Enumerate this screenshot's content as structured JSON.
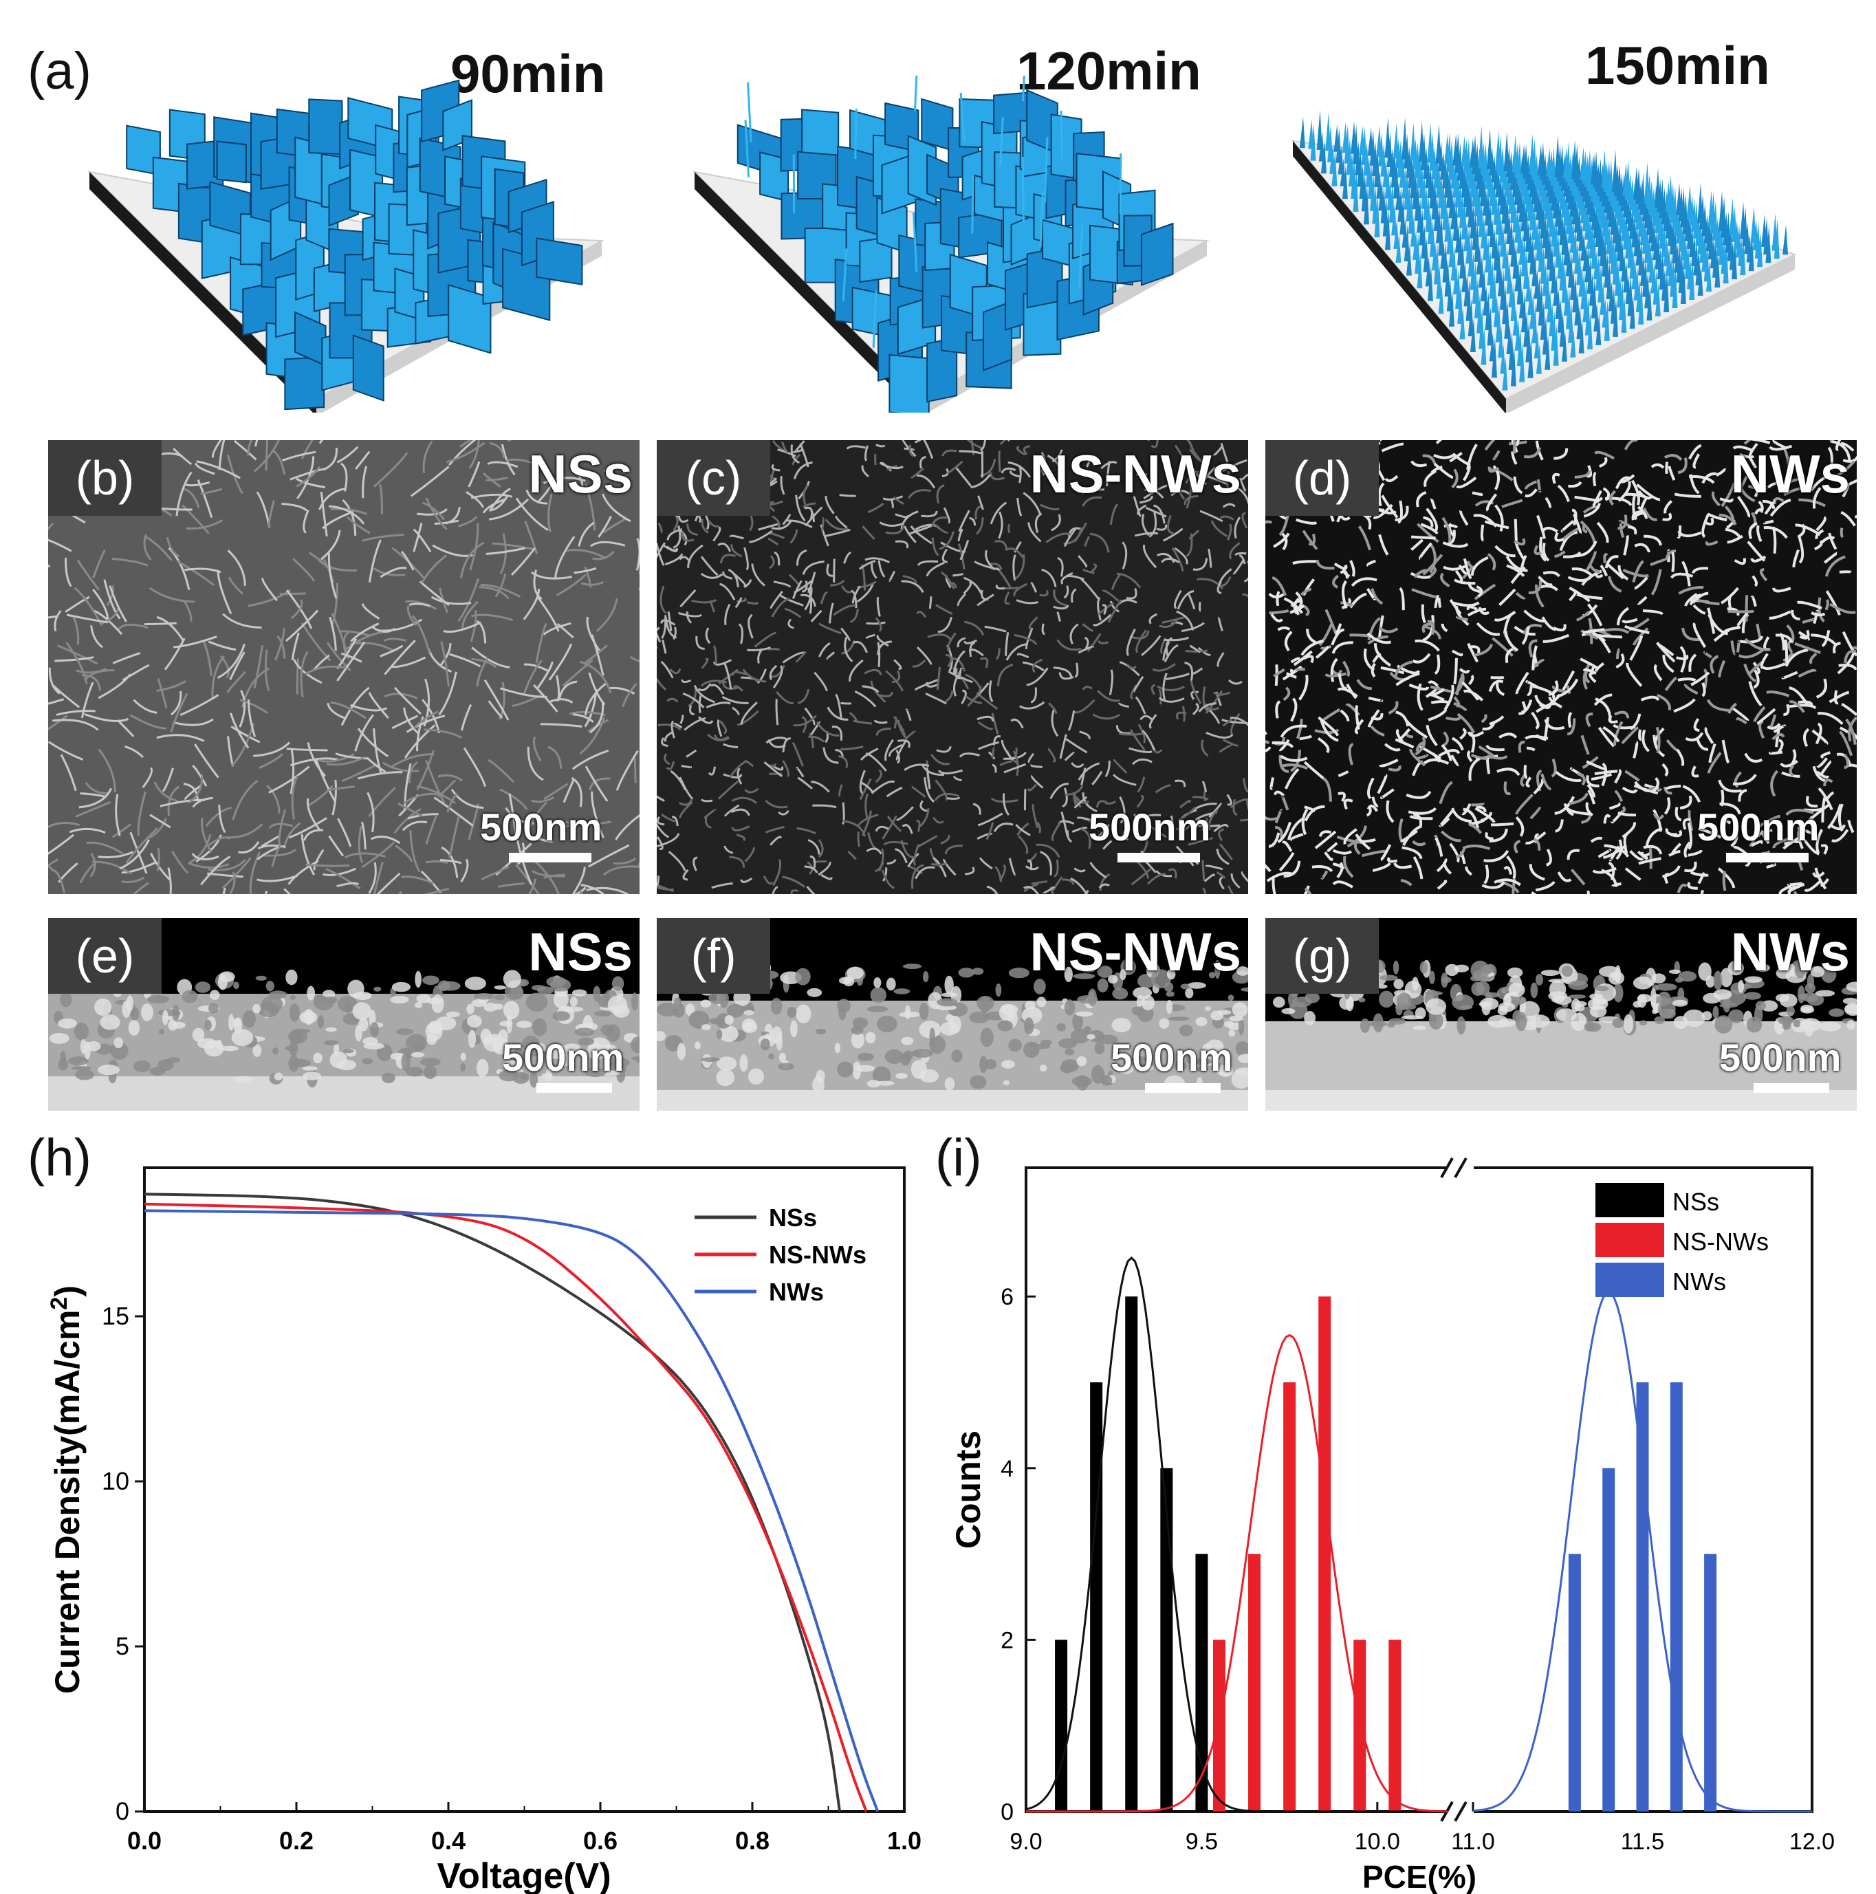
{
  "panel_a": {
    "letter": "(a)",
    "times": [
      "90min",
      "120min",
      "150min"
    ]
  },
  "sem_top": [
    {
      "letter": "(b)",
      "name": "NSs",
      "scale": "500nm"
    },
    {
      "letter": "(c)",
      "name": "NS-NWs",
      "scale": "500nm"
    },
    {
      "letter": "(d)",
      "name": "NWs",
      "scale": "500nm"
    }
  ],
  "sem_cross": [
    {
      "letter": "(e)",
      "name": "NSs",
      "scale": "500nm"
    },
    {
      "letter": "(f)",
      "name": "NS-NWs",
      "scale": "500nm"
    },
    {
      "letter": "(g)",
      "name": "NWs",
      "scale": "500nm"
    }
  ],
  "colors": {
    "NSs": "#3a3a3a",
    "NS-NWs": "#e8202a",
    "NWs": "#3c62c8",
    "blue_ns": "#1fa0e0"
  },
  "chart_data": [
    {
      "letter": "(h)",
      "type": "line",
      "title": "",
      "xlabel": "Voltage(V)",
      "ylabel": "Current Density(mA/cm",
      "ylabel_sup": "2",
      "ylabel_close": ")",
      "xlim": [
        0.0,
        1.0
      ],
      "ylim": [
        0,
        19.5
      ],
      "xticks": [
        "0.0",
        "0.2",
        "0.4",
        "0.6",
        "0.8",
        "1.0"
      ],
      "yticks": [
        "0",
        "5",
        "10",
        "15"
      ],
      "series": [
        {
          "name": "NSs",
          "points": [
            [
              0,
              18.7
            ],
            [
              0.15,
              18.65
            ],
            [
              0.25,
              18.5
            ],
            [
              0.35,
              18.1
            ],
            [
              0.45,
              17.2
            ],
            [
              0.55,
              15.9
            ],
            [
              0.65,
              14.3
            ],
            [
              0.72,
              12.8
            ],
            [
              0.78,
              10.6
            ],
            [
              0.83,
              7.8
            ],
            [
              0.87,
              5.0
            ],
            [
              0.9,
              2.5
            ],
            [
              0.915,
              0
            ]
          ]
        },
        {
          "name": "NS-NWs",
          "points": [
            [
              0,
              18.4
            ],
            [
              0.2,
              18.3
            ],
            [
              0.4,
              18.1
            ],
            [
              0.5,
              17.5
            ],
            [
              0.6,
              15.6
            ],
            [
              0.68,
              13.6
            ],
            [
              0.74,
              12.0
            ],
            [
              0.8,
              9.4
            ],
            [
              0.85,
              6.6
            ],
            [
              0.9,
              3.4
            ],
            [
              0.93,
              1.2
            ],
            [
              0.95,
              0
            ]
          ]
        },
        {
          "name": "NWs",
          "points": [
            [
              0,
              18.2
            ],
            [
              0.2,
              18.15
            ],
            [
              0.4,
              18.1
            ],
            [
              0.5,
              18.0
            ],
            [
              0.6,
              17.6
            ],
            [
              0.65,
              16.9
            ],
            [
              0.7,
              15.5
            ],
            [
              0.76,
              13.2
            ],
            [
              0.82,
              10.0
            ],
            [
              0.87,
              6.8
            ],
            [
              0.91,
              3.8
            ],
            [
              0.945,
              1.2
            ],
            [
              0.965,
              0
            ]
          ]
        }
      ],
      "legend": [
        "NSs",
        "NS-NWs",
        "NWs"
      ]
    },
    {
      "letter": "(i)",
      "type": "bar",
      "title": "",
      "xlabel": "PCE(%)",
      "ylabel": "Counts",
      "xlim": [
        9.0,
        12.0
      ],
      "x_break": [
        10.2,
        11.0
      ],
      "ylim": [
        0,
        7.5
      ],
      "xticks": [
        "9.0",
        "9.5",
        "10.0",
        "11.0",
        "11.5",
        "12.0"
      ],
      "yticks": [
        "0",
        "2",
        "4",
        "6"
      ],
      "series": [
        {
          "name": "NSs",
          "x": [
            9.1,
            9.2,
            9.3,
            9.4,
            9.5
          ],
          "values": [
            2,
            5,
            6,
            4,
            3
          ],
          "gauss": {
            "mu": 9.3,
            "sigma": 0.09,
            "amp": 6.45
          }
        },
        {
          "name": "NS-NWs",
          "x": [
            9.55,
            9.65,
            9.75,
            9.85,
            9.95,
            10.05
          ],
          "values": [
            2,
            3,
            5,
            6,
            2,
            2
          ],
          "gauss": {
            "mu": 9.75,
            "sigma": 0.11,
            "amp": 5.55
          }
        },
        {
          "name": "NWs",
          "x": [
            11.3,
            11.4,
            11.5,
            11.6,
            11.7
          ],
          "values": [
            3,
            4,
            5,
            5,
            3
          ],
          "gauss": {
            "mu": 11.4,
            "sigma": 0.11,
            "amp": 6.05
          }
        }
      ],
      "legend": [
        "NSs",
        "NS-NWs",
        "NWs"
      ]
    }
  ]
}
